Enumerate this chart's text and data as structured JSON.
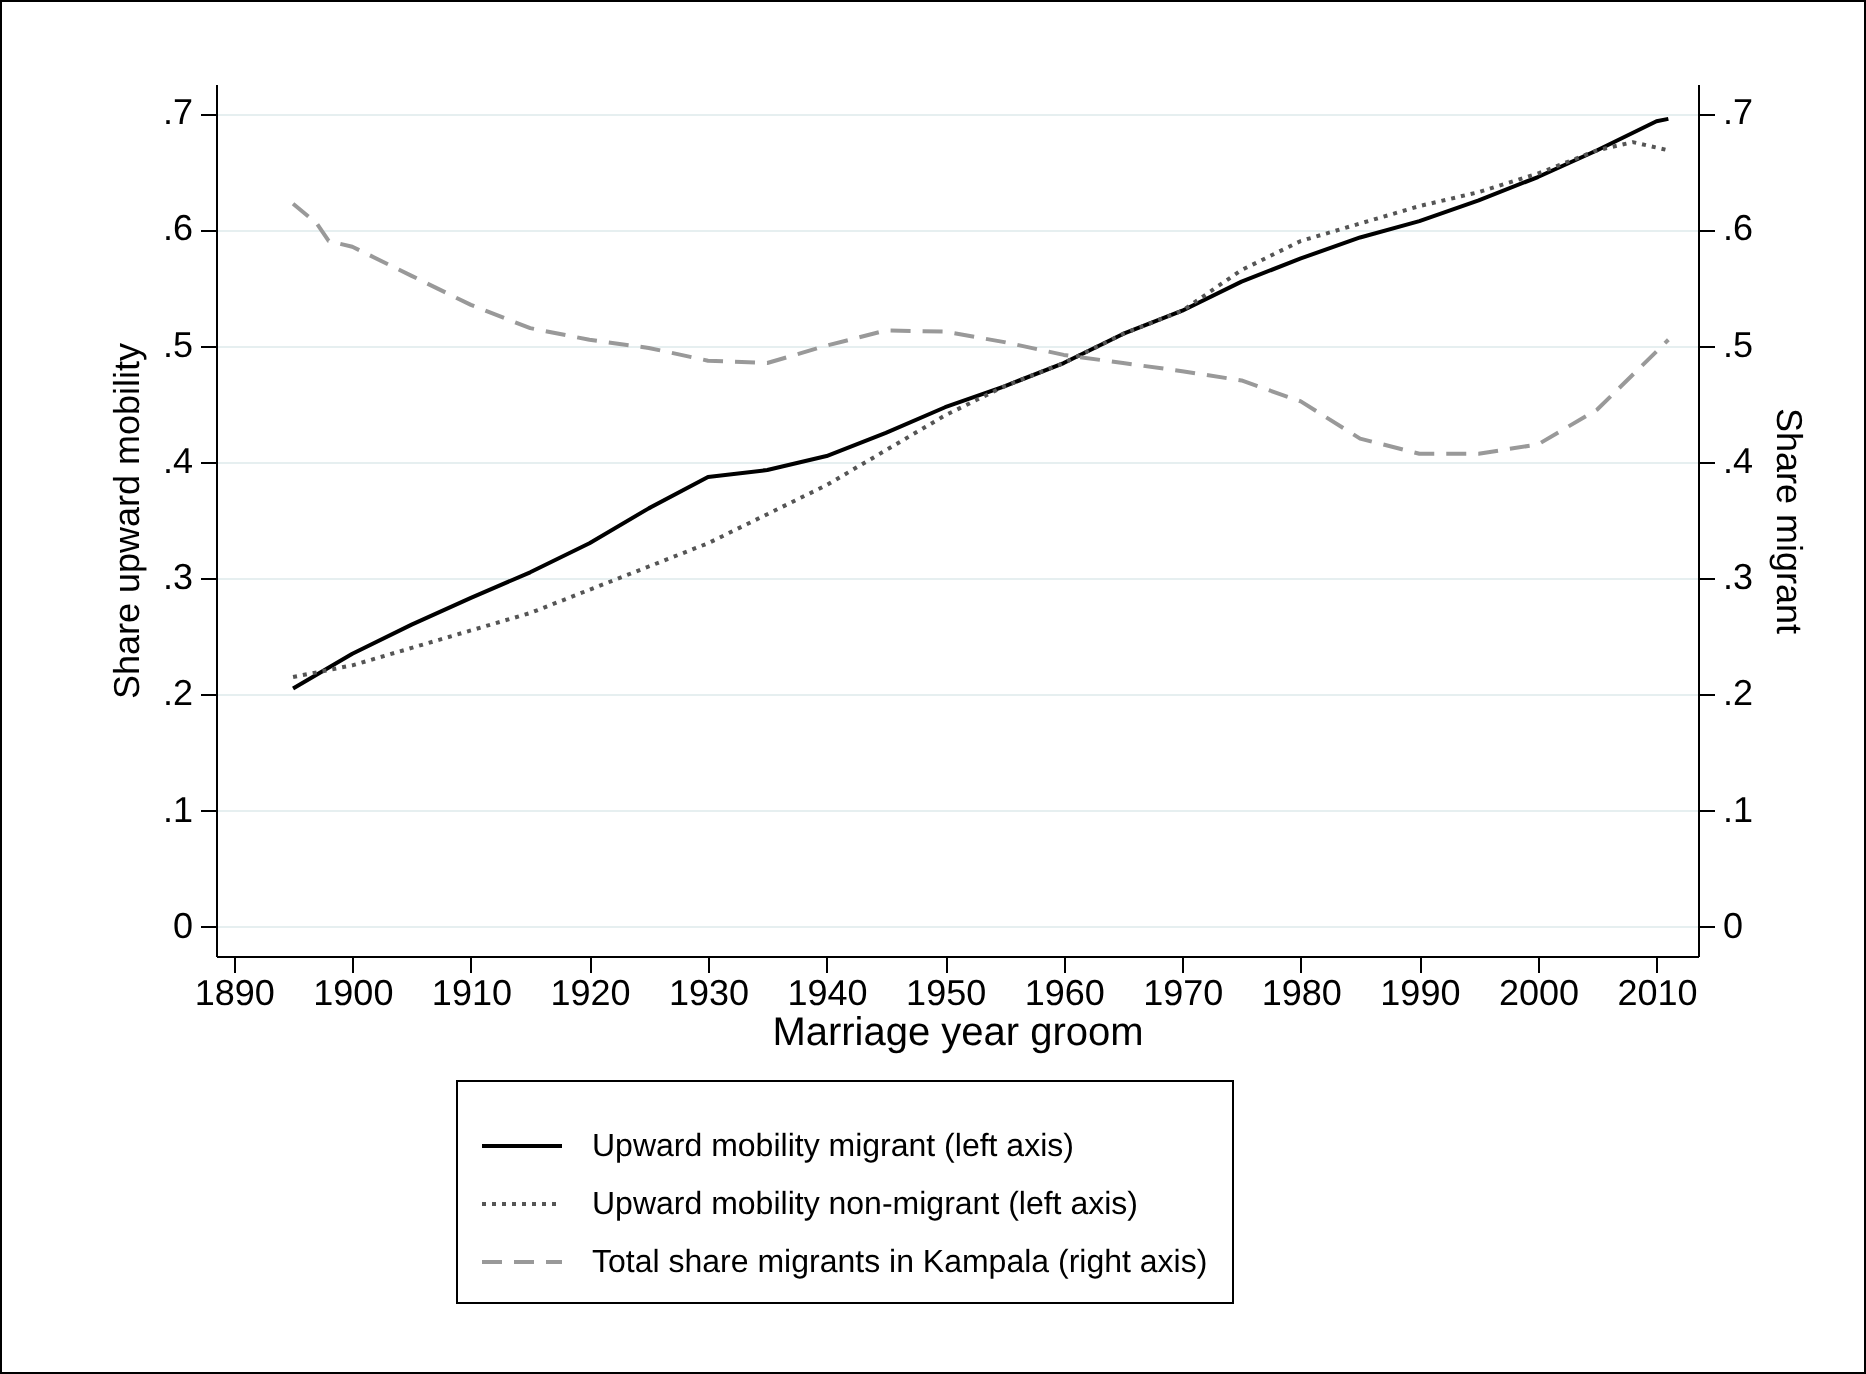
{
  "chart_data": {
    "type": "line",
    "xlabel": "Marriage year groom",
    "ylabel": "Share upward mobility",
    "y2label": "Share migrant",
    "xlim": [
      1888.5,
      2013.5
    ],
    "xticks": [
      1890,
      1900,
      1910,
      1920,
      1930,
      1940,
      1950,
      1960,
      1970,
      1980,
      1990,
      2000,
      2010
    ],
    "ylim": [
      -0.025,
      0.725
    ],
    "yticks": [
      {
        "value": 0,
        "label": "0"
      },
      {
        "value": 0.1,
        "label": ".1"
      },
      {
        "value": 0.2,
        "label": ".2"
      },
      {
        "value": 0.3,
        "label": ".3"
      },
      {
        "value": 0.4,
        "label": ".4"
      },
      {
        "value": 0.5,
        "label": ".5"
      },
      {
        "value": 0.6,
        "label": ".6"
      },
      {
        "value": 0.7,
        "label": ".7"
      }
    ],
    "y2lim": [
      -0.025,
      0.725
    ],
    "y2ticks": [
      {
        "value": 0,
        "label": "0"
      },
      {
        "value": 0.1,
        "label": ".1"
      },
      {
        "value": 0.2,
        "label": ".2"
      },
      {
        "value": 0.3,
        "label": ".3"
      },
      {
        "value": 0.4,
        "label": ".4"
      },
      {
        "value": 0.5,
        "label": ".5"
      },
      {
        "value": 0.6,
        "label": ".6"
      },
      {
        "value": 0.7,
        "label": ".7"
      }
    ],
    "grid": "y",
    "legend": "bottom",
    "marker": "none",
    "series": [
      {
        "name": "Upward mobility migrant (left axis)",
        "color": "#000000",
        "line_style": "solid",
        "x": [
          1895,
          1900,
          1905,
          1910,
          1915,
          1920,
          1925,
          1930,
          1935,
          1940,
          1945,
          1950,
          1955,
          1960,
          1965,
          1970,
          1975,
          1980,
          1985,
          1990,
          1995,
          2000,
          2005,
          2010,
          2011
        ],
        "values": [
          0.205,
          0.235,
          0.26,
          0.283,
          0.305,
          0.33,
          0.36,
          0.387,
          0.393,
          0.405,
          0.425,
          0.447,
          0.465,
          0.485,
          0.51,
          0.53,
          0.555,
          0.575,
          0.593,
          0.607,
          0.625,
          0.645,
          0.668,
          0.693,
          0.695
        ]
      },
      {
        "name": "Upward mobility non-migrant (left axis)",
        "color": "#555555",
        "line_style": "dotted",
        "x": [
          1895,
          1900,
          1905,
          1910,
          1915,
          1920,
          1925,
          1930,
          1935,
          1940,
          1945,
          1950,
          1955,
          1960,
          1965,
          1970,
          1975,
          1980,
          1985,
          1990,
          1995,
          2000,
          2005,
          2008,
          2011
        ],
        "values": [
          0.215,
          0.225,
          0.24,
          0.255,
          0.27,
          0.29,
          0.31,
          0.33,
          0.355,
          0.38,
          0.41,
          0.44,
          0.465,
          0.485,
          0.51,
          0.53,
          0.565,
          0.59,
          0.605,
          0.62,
          0.632,
          0.648,
          0.668,
          0.675,
          0.668
        ]
      },
      {
        "name": "Total share migrants in Kampala (right axis)",
        "color": "#999999",
        "line_style": "dashed",
        "axis": "y2",
        "x": [
          1895,
          1897,
          1898,
          1900,
          1905,
          1910,
          1915,
          1920,
          1925,
          1930,
          1935,
          1940,
          1945,
          1950,
          1955,
          1960,
          1965,
          1970,
          1975,
          1980,
          1985,
          1990,
          1995,
          2000,
          2005,
          2011
        ],
        "values": [
          0.622,
          0.605,
          0.59,
          0.585,
          0.56,
          0.535,
          0.515,
          0.505,
          0.498,
          0.487,
          0.485,
          0.5,
          0.513,
          0.512,
          0.503,
          0.492,
          0.485,
          0.478,
          0.47,
          0.452,
          0.42,
          0.407,
          0.407,
          0.415,
          0.445,
          0.505
        ]
      }
    ]
  }
}
